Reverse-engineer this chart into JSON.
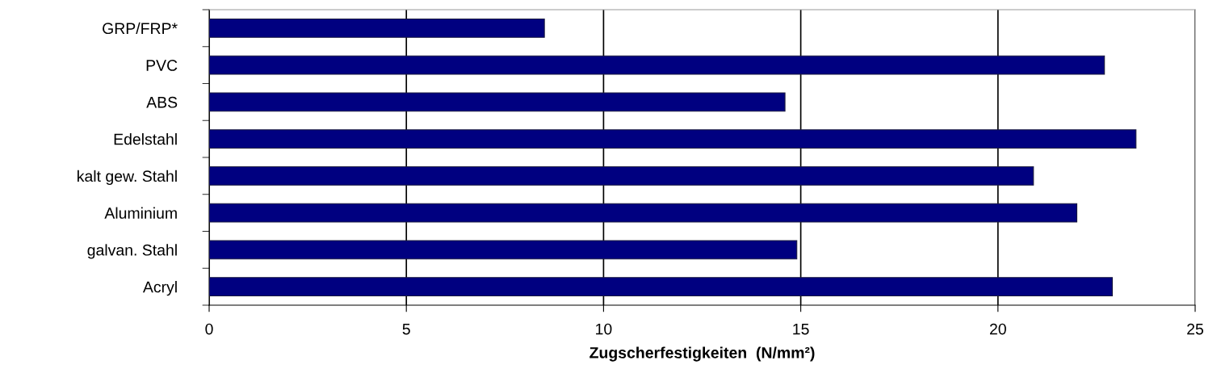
{
  "chart_data": {
    "type": "bar",
    "orientation": "horizontal",
    "categories": [
      "GRP/FRP*",
      "PVC",
      "ABS",
      "Edelstahl",
      "kalt gew. Stahl",
      "Aluminium",
      "galvan. Stahl",
      "Acryl"
    ],
    "series": [
      {
        "color": "#000080",
        "values": [
          8.5,
          22.7,
          14.6,
          23.5,
          20.9,
          22.0,
          14.9,
          22.9
        ]
      }
    ],
    "xlabel": "Zugscherfestigkeiten  (N/mm²)",
    "xlim": [
      0,
      25
    ],
    "xticks": [
      0,
      5,
      10,
      15,
      20,
      25
    ],
    "grid": "x",
    "legend": false
  }
}
